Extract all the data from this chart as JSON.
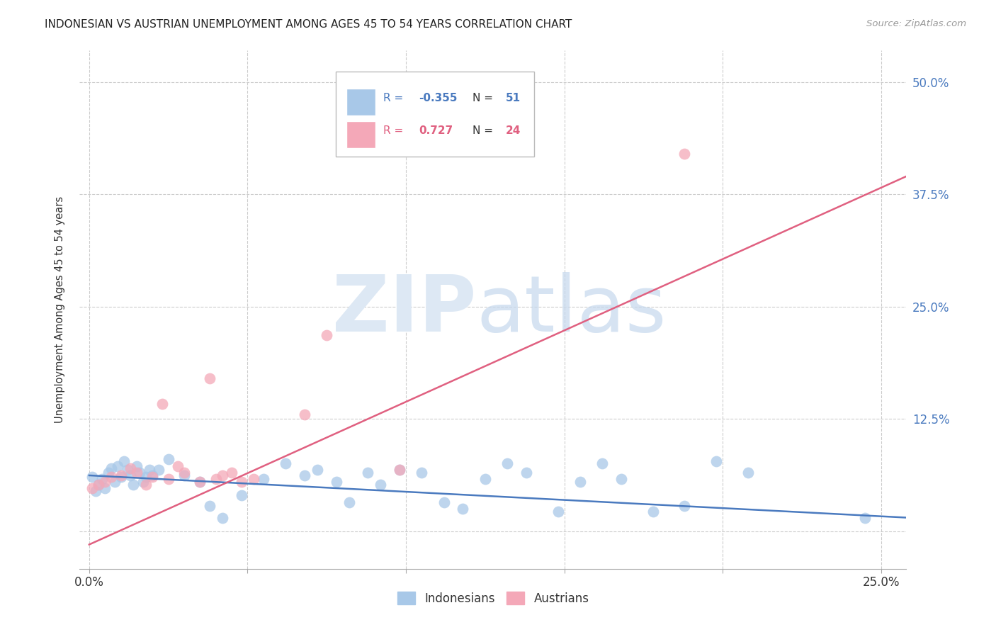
{
  "title": "INDONESIAN VS AUSTRIAN UNEMPLOYMENT AMONG AGES 45 TO 54 YEARS CORRELATION CHART",
  "source": "Source: ZipAtlas.com",
  "ylabel": "Unemployment Among Ages 45 to 54 years",
  "indonesian_color": "#a8c8e8",
  "austrian_color": "#f4a8b8",
  "indonesian_line_color": "#4a7abf",
  "austrian_line_color": "#e06080",
  "R_indonesian": -0.355,
  "N_indonesian": 51,
  "R_austrian": 0.727,
  "N_austrian": 24,
  "xlim": [
    -0.003,
    0.258
  ],
  "ylim": [
    -0.042,
    0.535
  ],
  "x_ticks": [
    0.0,
    0.05,
    0.1,
    0.15,
    0.2,
    0.25
  ],
  "x_labels": [
    "0.0%",
    "",
    "",
    "",
    "",
    "25.0%"
  ],
  "y_ticks": [
    0.0,
    0.125,
    0.25,
    0.375,
    0.5
  ],
  "y_right_labels": [
    "",
    "12.5%",
    "25.0%",
    "37.5%",
    "50.0%"
  ],
  "ind_x": [
    0.001,
    0.002,
    0.003,
    0.004,
    0.005,
    0.006,
    0.007,
    0.008,
    0.009,
    0.01,
    0.011,
    0.012,
    0.013,
    0.014,
    0.015,
    0.016,
    0.017,
    0.018,
    0.019,
    0.02,
    0.022,
    0.025,
    0.03,
    0.035,
    0.038,
    0.042,
    0.048,
    0.055,
    0.062,
    0.068,
    0.072,
    0.078,
    0.082,
    0.088,
    0.092,
    0.098,
    0.105,
    0.112,
    0.118,
    0.125,
    0.132,
    0.138,
    0.148,
    0.155,
    0.162,
    0.168,
    0.178,
    0.188,
    0.198,
    0.208,
    0.245
  ],
  "ind_y": [
    0.06,
    0.045,
    0.052,
    0.058,
    0.048,
    0.065,
    0.07,
    0.055,
    0.072,
    0.06,
    0.078,
    0.068,
    0.062,
    0.052,
    0.072,
    0.065,
    0.055,
    0.06,
    0.068,
    0.062,
    0.068,
    0.08,
    0.062,
    0.055,
    0.028,
    0.015,
    0.04,
    0.058,
    0.075,
    0.062,
    0.068,
    0.055,
    0.032,
    0.065,
    0.052,
    0.068,
    0.065,
    0.032,
    0.025,
    0.058,
    0.075,
    0.065,
    0.022,
    0.055,
    0.075,
    0.058,
    0.022,
    0.028,
    0.078,
    0.065,
    0.015
  ],
  "aut_x": [
    0.001,
    0.003,
    0.005,
    0.007,
    0.01,
    0.013,
    0.015,
    0.018,
    0.02,
    0.023,
    0.025,
    0.028,
    0.03,
    0.035,
    0.038,
    0.04,
    0.042,
    0.045,
    0.048,
    0.052,
    0.068,
    0.075,
    0.098,
    0.188
  ],
  "aut_y": [
    0.048,
    0.052,
    0.055,
    0.06,
    0.062,
    0.07,
    0.065,
    0.052,
    0.06,
    0.142,
    0.058,
    0.072,
    0.065,
    0.055,
    0.17,
    0.058,
    0.062,
    0.065,
    0.055,
    0.058,
    0.13,
    0.218,
    0.068,
    0.42
  ],
  "ind_trend_x0": 0.0,
  "ind_trend_y0": 0.062,
  "ind_trend_x1": 0.258,
  "ind_trend_y1": 0.015,
  "aut_trend_x0": 0.0,
  "aut_trend_y0": -0.015,
  "aut_trend_x1": 0.258,
  "aut_trend_y1": 0.395
}
